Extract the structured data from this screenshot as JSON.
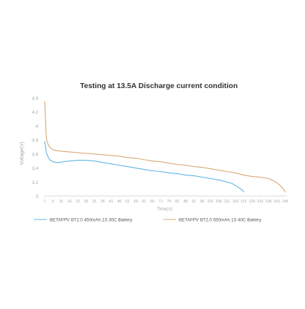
{
  "chart_data": {
    "type": "line",
    "title": "Testing at 13.5A Discharge current condition",
    "xlabel": "Time(s)",
    "ylabel": "Voltage(V)",
    "xlim": [
      1,
      146
    ],
    "ylim": [
      3,
      4.4
    ],
    "x_ticks": [
      "1",
      "6",
      "11",
      "16",
      "21",
      "26",
      "31",
      "36",
      "41",
      "46",
      "51",
      "56",
      "61",
      "66",
      "71",
      "76",
      "81",
      "86",
      "91",
      "96",
      "101",
      "106",
      "111",
      "116",
      "121",
      "126",
      "131",
      "136",
      "141",
      "146"
    ],
    "y_ticks": [
      "3",
      "3.2",
      "3.4",
      "3.6",
      "3.8",
      "4",
      "4.2",
      "4.4"
    ],
    "legend_position": "bottom",
    "grid": false,
    "series": [
      {
        "name": "BETAFPV BT2.0 450mAh 1S 30C Battery",
        "color": "#5ab4e5",
        "x": [
          1,
          2,
          3,
          4,
          6,
          8,
          10,
          12,
          16,
          21,
          26,
          31,
          36,
          41,
          46,
          51,
          56,
          61,
          66,
          71,
          76,
          81,
          86,
          91,
          96,
          101,
          106,
          111,
          114,
          116,
          118,
          120,
          121
        ],
        "y": [
          3.78,
          3.62,
          3.56,
          3.52,
          3.49,
          3.48,
          3.48,
          3.49,
          3.5,
          3.51,
          3.51,
          3.5,
          3.48,
          3.46,
          3.44,
          3.42,
          3.4,
          3.38,
          3.36,
          3.35,
          3.33,
          3.32,
          3.3,
          3.29,
          3.27,
          3.25,
          3.23,
          3.2,
          3.18,
          3.15,
          3.12,
          3.09,
          3.06
        ]
      },
      {
        "name": "BETAFPV BT2.0 550mAh 1S 40C Battery",
        "color": "#d9a772",
        "x": [
          1,
          2,
          3,
          4,
          6,
          8,
          11,
          16,
          21,
          26,
          31,
          36,
          41,
          46,
          51,
          56,
          61,
          66,
          71,
          76,
          81,
          86,
          91,
          96,
          101,
          106,
          111,
          116,
          121,
          126,
          131,
          136,
          139,
          141,
          143,
          145,
          146
        ],
        "y": [
          4.35,
          3.82,
          3.74,
          3.7,
          3.66,
          3.65,
          3.64,
          3.63,
          3.62,
          3.61,
          3.6,
          3.59,
          3.58,
          3.57,
          3.55,
          3.54,
          3.52,
          3.5,
          3.49,
          3.47,
          3.45,
          3.44,
          3.42,
          3.41,
          3.39,
          3.37,
          3.35,
          3.33,
          3.3,
          3.28,
          3.27,
          3.25,
          3.22,
          3.19,
          3.15,
          3.1,
          3.06
        ]
      }
    ]
  }
}
